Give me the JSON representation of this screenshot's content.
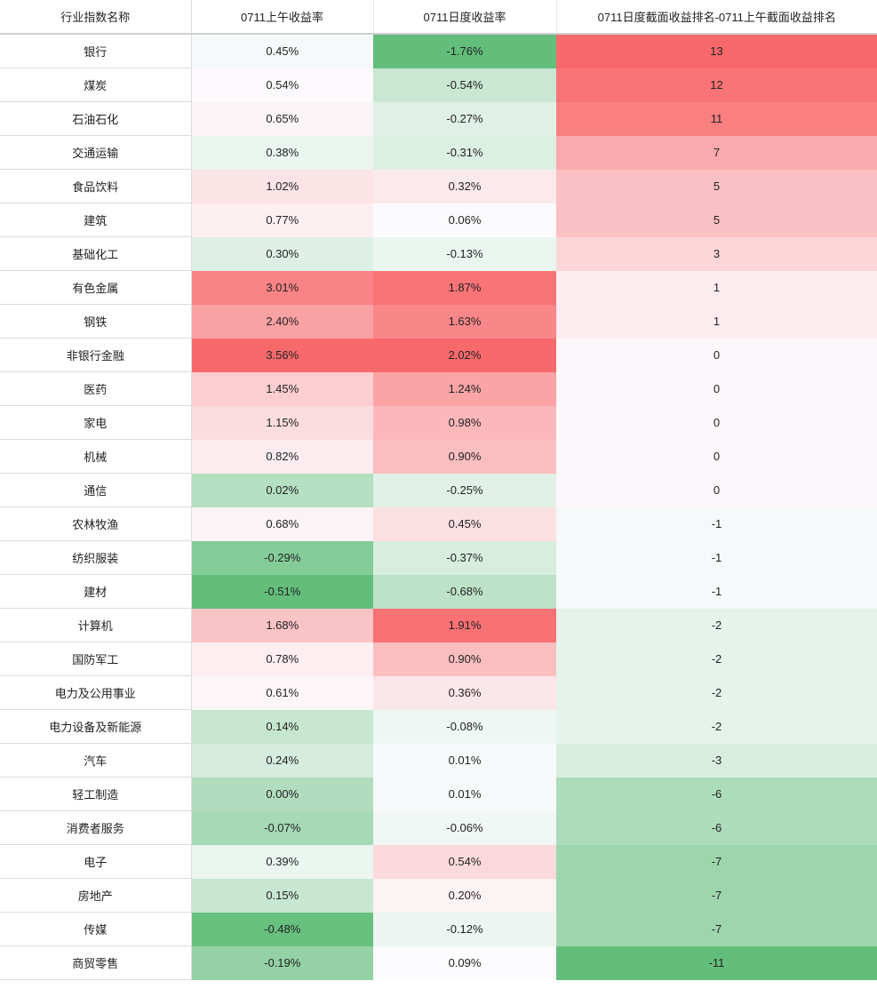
{
  "chart_data": {
    "type": "table",
    "columns": [
      "行业指数名称",
      "0711上午收益率",
      "0711日度收益率",
      "0711日度截面收益排名-0711上午截面收益排名"
    ],
    "rows": [
      {
        "name": "银行",
        "am": "0.45%",
        "am_value": 0.45,
        "day": "-1.76%",
        "day_value": -1.76,
        "rank_change": "13",
        "rank_value": 13
      },
      {
        "name": "煤炭",
        "am": "0.54%",
        "am_value": 0.54,
        "day": "-0.54%",
        "day_value": -0.54,
        "rank_change": "12",
        "rank_value": 12
      },
      {
        "name": "石油石化",
        "am": "0.65%",
        "am_value": 0.65,
        "day": "-0.27%",
        "day_value": -0.27,
        "rank_change": "11",
        "rank_value": 11
      },
      {
        "name": "交通运输",
        "am": "0.38%",
        "am_value": 0.38,
        "day": "-0.31%",
        "day_value": -0.31,
        "rank_change": "7",
        "rank_value": 7
      },
      {
        "name": "食品饮料",
        "am": "1.02%",
        "am_value": 1.02,
        "day": "0.32%",
        "day_value": 0.32,
        "rank_change": "5",
        "rank_value": 5
      },
      {
        "name": "建筑",
        "am": "0.77%",
        "am_value": 0.77,
        "day": "0.06%",
        "day_value": 0.06,
        "rank_change": "5",
        "rank_value": 5
      },
      {
        "name": "基础化工",
        "am": "0.30%",
        "am_value": 0.3,
        "day": "-0.13%",
        "day_value": -0.13,
        "rank_change": "3",
        "rank_value": 3
      },
      {
        "name": "有色金属",
        "am": "3.01%",
        "am_value": 3.01,
        "day": "1.87%",
        "day_value": 1.87,
        "rank_change": "1",
        "rank_value": 1
      },
      {
        "name": "钢铁",
        "am": "2.40%",
        "am_value": 2.4,
        "day": "1.63%",
        "day_value": 1.63,
        "rank_change": "1",
        "rank_value": 1
      },
      {
        "name": "非银行金融",
        "am": "3.56%",
        "am_value": 3.56,
        "day": "2.02%",
        "day_value": 2.02,
        "rank_change": "0",
        "rank_value": 0
      },
      {
        "name": "医药",
        "am": "1.45%",
        "am_value": 1.45,
        "day": "1.24%",
        "day_value": 1.24,
        "rank_change": "0",
        "rank_value": 0
      },
      {
        "name": "家电",
        "am": "1.15%",
        "am_value": 1.15,
        "day": "0.98%",
        "day_value": 0.98,
        "rank_change": "0",
        "rank_value": 0
      },
      {
        "name": "机械",
        "am": "0.82%",
        "am_value": 0.82,
        "day": "0.90%",
        "day_value": 0.9,
        "rank_change": "0",
        "rank_value": 0
      },
      {
        "name": "通信",
        "am": "0.02%",
        "am_value": 0.02,
        "day": "-0.25%",
        "day_value": -0.25,
        "rank_change": "0",
        "rank_value": 0
      },
      {
        "name": "农林牧渔",
        "am": "0.68%",
        "am_value": 0.68,
        "day": "0.45%",
        "day_value": 0.45,
        "rank_change": "-1",
        "rank_value": -1
      },
      {
        "name": "纺织服装",
        "am": "-0.29%",
        "am_value": -0.29,
        "day": "-0.37%",
        "day_value": -0.37,
        "rank_change": "-1",
        "rank_value": -1
      },
      {
        "name": "建材",
        "am": "-0.51%",
        "am_value": -0.51,
        "day": "-0.68%",
        "day_value": -0.68,
        "rank_change": "-1",
        "rank_value": -1
      },
      {
        "name": "计算机",
        "am": "1.68%",
        "am_value": 1.68,
        "day": "1.91%",
        "day_value": 1.91,
        "rank_change": "-2",
        "rank_value": -2
      },
      {
        "name": "国防军工",
        "am": "0.78%",
        "am_value": 0.78,
        "day": "0.90%",
        "day_value": 0.9,
        "rank_change": "-2",
        "rank_value": -2
      },
      {
        "name": "电力及公用事业",
        "am": "0.61%",
        "am_value": 0.61,
        "day": "0.36%",
        "day_value": 0.36,
        "rank_change": "-2",
        "rank_value": -2
      },
      {
        "name": "电力设备及新能源",
        "am": "0.14%",
        "am_value": 0.14,
        "day": "-0.08%",
        "day_value": -0.08,
        "rank_change": "-2",
        "rank_value": -2
      },
      {
        "name": "汽车",
        "am": "0.24%",
        "am_value": 0.24,
        "day": "0.01%",
        "day_value": 0.01,
        "rank_change": "-3",
        "rank_value": -3
      },
      {
        "name": "轻工制造",
        "am": "0.00%",
        "am_value": 0.0,
        "day": "0.01%",
        "day_value": 0.01,
        "rank_change": "-6",
        "rank_value": -6
      },
      {
        "name": "消费者服务",
        "am": "-0.07%",
        "am_value": -0.07,
        "day": "-0.06%",
        "day_value": -0.06,
        "rank_change": "-6",
        "rank_value": -6
      },
      {
        "name": "电子",
        "am": "0.39%",
        "am_value": 0.39,
        "day": "0.54%",
        "day_value": 0.54,
        "rank_change": "-7",
        "rank_value": -7
      },
      {
        "name": "房地产",
        "am": "0.15%",
        "am_value": 0.15,
        "day": "0.20%",
        "day_value": 0.2,
        "rank_change": "-7",
        "rank_value": -7
      },
      {
        "name": "传媒",
        "am": "-0.48%",
        "am_value": -0.48,
        "day": "-0.12%",
        "day_value": -0.12,
        "rank_change": "-7",
        "rank_value": -7
      },
      {
        "name": "商贸零售",
        "am": "-0.19%",
        "am_value": -0.19,
        "day": "0.09%",
        "day_value": 0.09,
        "rank_change": "-11",
        "rank_value": -11
      }
    ],
    "color_scale": {
      "high": "#f8696b",
      "mid": "#fcfcff",
      "low": "#63be7b"
    }
  }
}
